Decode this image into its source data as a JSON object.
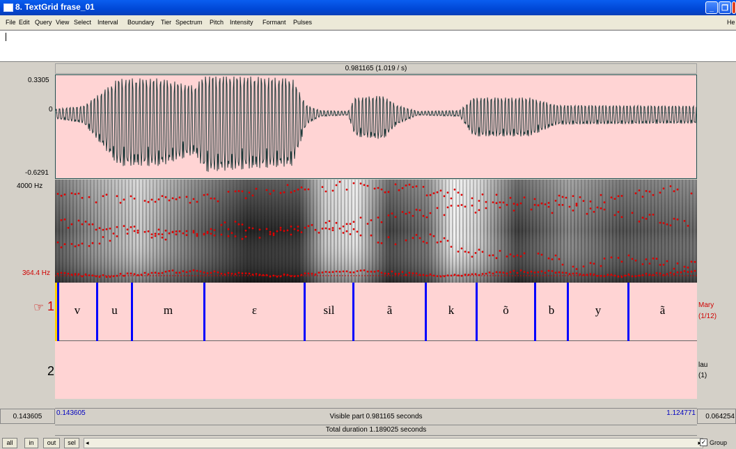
{
  "window": {
    "title": "8. TextGrid frase_01"
  },
  "menu": [
    "File",
    "Edit",
    "Query",
    "View",
    "Select",
    "Interval",
    "Boundary",
    "Tier",
    "Spectrum",
    "Pitch",
    "Intensity",
    "Formant",
    "Pulses"
  ],
  "menu_help": "He",
  "selection_label": "0.981165 (1.019 / s)",
  "waveform": {
    "max_label": "0.3305",
    "zero_label": "0",
    "min_label": "-0.6291"
  },
  "spectrogram": {
    "top_label": "4000 Hz",
    "pitch_label": "364.4 Hz"
  },
  "tiers": [
    {
      "number": "1",
      "name": "Mary",
      "count": "(1/12)",
      "intervals": [
        "v",
        "u",
        "m",
        "ɛ",
        "sil",
        "ã",
        "k",
        "õ",
        "b",
        "y",
        "ã"
      ]
    },
    {
      "number": "2",
      "name": "lau",
      "count": "(1)",
      "intervals": []
    }
  ],
  "visible": {
    "start": "0.143605",
    "end": "1.124771",
    "label": "Visible part 0.981165 seconds"
  },
  "left_time": "0.143605",
  "right_time": "0.064254",
  "total": "Total duration 1.189025 seconds",
  "buttons": {
    "all": "all",
    "in": "in",
    "out": "out",
    "sel": "sel",
    "group": "Group"
  },
  "colors": {
    "accent_blue": "#0000ff",
    "tier_bg": "#ffd4d4",
    "pitch_red": "#e00000"
  }
}
